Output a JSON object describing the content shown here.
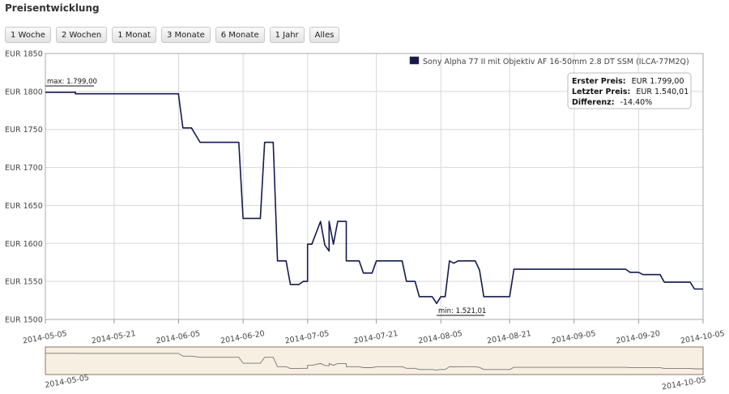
{
  "title": "Preisentwicklung",
  "range_buttons": [
    "1 Woche",
    "2 Wochen",
    "1 Monat",
    "3 Monate",
    "6 Monate",
    "1 Jahr",
    "Alles"
  ],
  "colors": {
    "line": "#141a4e",
    "navigator_fill": "#f7efe1",
    "navigator_border": "#8a7a62"
  },
  "info": {
    "first_label": "Erster Preis:",
    "first_value": "EUR 1.799,00",
    "last_label": "Letzter Preis:",
    "last_value": "EUR 1.540,01",
    "diff_label": "Differenz:",
    "diff_value": "-14.40%"
  },
  "annotations": {
    "max_label": "max: 1.799,00",
    "min_label": "min: 1.521,01"
  },
  "navigator": {
    "start_label": "2014-05-05",
    "end_label": "2014-10-05"
  },
  "chart_data": {
    "type": "line",
    "title": "",
    "ylim": [
      1500,
      1850
    ],
    "xlim": [
      "2014-05-05",
      "2014-10-05"
    ],
    "y_ticks": [
      1500,
      1550,
      1600,
      1650,
      1700,
      1750,
      1800,
      1850
    ],
    "y_tick_labels": [
      "EUR 1500",
      "EUR 1550",
      "EUR 1600",
      "EUR 1650",
      "EUR 1700",
      "EUR 1750",
      "EUR 1800",
      "EUR 1850"
    ],
    "x_tick_labels": [
      "2014-05-05",
      "2014-05-21",
      "2014-06-05",
      "2014-06-20",
      "2014-07-05",
      "2014-07-21",
      "2014-08-05",
      "2014-08-21",
      "2014-09-05",
      "2014-09-20",
      "2014-10-05"
    ],
    "grid": true,
    "legend_position": "top-right",
    "series": [
      {
        "name": "Sony Alpha 77 II mit Objektiv AF 16-50mm 2.8 DT SSM (ILCA-77M2Q)",
        "points": [
          [
            "2014-05-05",
            1799
          ],
          [
            "2014-05-12",
            1799
          ],
          [
            "2014-05-12",
            1797
          ],
          [
            "2014-06-05",
            1797
          ],
          [
            "2014-06-05",
            1795
          ],
          [
            "2014-06-06",
            1752
          ],
          [
            "2014-06-08",
            1752
          ],
          [
            "2014-06-10",
            1733
          ],
          [
            "2014-06-19",
            1733
          ],
          [
            "2014-06-20",
            1633
          ],
          [
            "2014-06-24",
            1633
          ],
          [
            "2014-06-25",
            1733
          ],
          [
            "2014-06-27",
            1733
          ],
          [
            "2014-06-28",
            1577
          ],
          [
            "2014-06-30",
            1577
          ],
          [
            "2014-07-01",
            1546
          ],
          [
            "2014-07-03",
            1546
          ],
          [
            "2014-07-04",
            1550
          ],
          [
            "2014-07-05",
            1550
          ],
          [
            "2014-07-05",
            1599
          ],
          [
            "2014-07-06",
            1599
          ],
          [
            "2014-07-08",
            1629
          ],
          [
            "2014-07-09",
            1598
          ],
          [
            "2014-07-10",
            1590
          ],
          [
            "2014-07-10",
            1629
          ],
          [
            "2014-07-11",
            1599
          ],
          [
            "2014-07-12",
            1629
          ],
          [
            "2014-07-14",
            1629
          ],
          [
            "2014-07-14",
            1577
          ],
          [
            "2014-07-17",
            1577
          ],
          [
            "2014-07-18",
            1561
          ],
          [
            "2014-07-20",
            1561
          ],
          [
            "2014-07-21",
            1577
          ],
          [
            "2014-07-27",
            1577
          ],
          [
            "2014-07-28",
            1550
          ],
          [
            "2014-07-30",
            1550
          ],
          [
            "2014-07-31",
            1530
          ],
          [
            "2014-08-03",
            1530
          ],
          [
            "2014-08-04",
            1521
          ],
          [
            "2014-08-05",
            1530
          ],
          [
            "2014-08-06",
            1530
          ],
          [
            "2014-08-07",
            1577
          ],
          [
            "2014-08-08",
            1574
          ],
          [
            "2014-08-09",
            1577
          ],
          [
            "2014-08-13",
            1577
          ],
          [
            "2014-08-14",
            1565
          ],
          [
            "2014-08-15",
            1530
          ],
          [
            "2014-08-21",
            1530
          ],
          [
            "2014-08-22",
            1566
          ],
          [
            "2014-09-17",
            1566
          ],
          [
            "2014-09-18",
            1562
          ],
          [
            "2014-09-20",
            1562
          ],
          [
            "2014-09-21",
            1559
          ],
          [
            "2014-09-25",
            1559
          ],
          [
            "2014-09-26",
            1549
          ],
          [
            "2014-10-02",
            1549
          ],
          [
            "2014-10-03",
            1540
          ],
          [
            "2014-10-05",
            1540
          ]
        ]
      }
    ]
  }
}
